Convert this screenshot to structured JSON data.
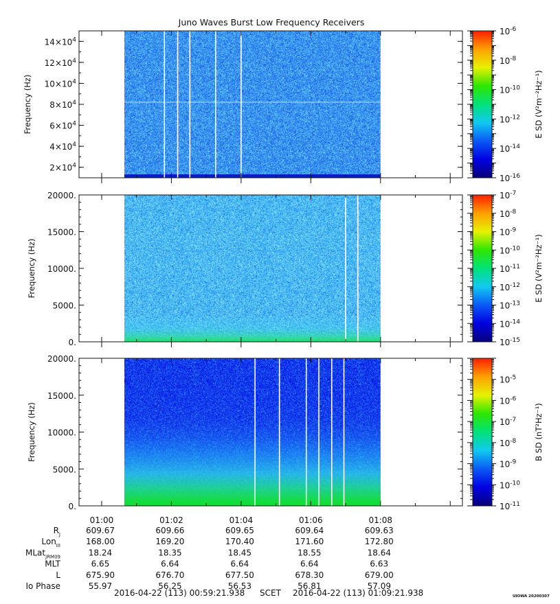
{
  "title": "Juno Waves Burst Low Frequency Receivers",
  "footer_left": "2016-04-22 (113) 00:59:21.938",
  "footer_mid": "SCET",
  "footer_right": "2016-04-22 (113) 01:09:21.938",
  "watermark": "UIOWA 20200307",
  "colors": {
    "colormap": [
      "#08007a",
      "#0000e0",
      "#0a5af5",
      "#12c8f0",
      "#00e27a",
      "#2ee600",
      "#e6f200",
      "#ffa000",
      "#ff1e00"
    ]
  },
  "ephemeris": {
    "labels": [
      {
        "main": "R",
        "sub": "J"
      },
      {
        "main": "Lon",
        "sub": "III"
      },
      {
        "main": "MLat",
        "sub": "JRM09"
      },
      {
        "main": "MLT",
        "sub": ""
      },
      {
        "main": "L",
        "sub": ""
      },
      {
        "main": "Io Phase",
        "sub": ""
      }
    ],
    "columns": [
      [
        "609.67",
        "168.00",
        "18.24",
        "6.65",
        "675.90",
        "55.97"
      ],
      [
        "609.66",
        "169.20",
        "18.35",
        "6.64",
        "676.70",
        "56.25"
      ],
      [
        "609.65",
        "170.40",
        "18.45",
        "6.64",
        "677.50",
        "56.53"
      ],
      [
        "609.64",
        "171.60",
        "18.55",
        "6.64",
        "678.30",
        "56.81"
      ],
      [
        "609.63",
        "172.80",
        "18.64",
        "6.63",
        "679.00",
        "57.09"
      ]
    ]
  },
  "chart_data": [
    {
      "type": "heatmap",
      "title": "Juno Waves Burst Low Frequency Receivers",
      "xlabel": "",
      "ylabel": "Frequency (Hz)",
      "x_ticks": [
        "01:00",
        "01:02",
        "01:04",
        "01:06",
        "01:08"
      ],
      "x_range_min": [
        -0.65,
        10.35
      ],
      "data_range_min": [
        0.65,
        8.0
      ],
      "ylim": [
        10000,
        150000
      ],
      "y_ticks": [
        {
          "value": 20000,
          "mant": "2×10",
          "exp": "4"
        },
        {
          "value": 40000,
          "mant": "4×10",
          "exp": "4"
        },
        {
          "value": 60000,
          "mant": "6×10",
          "exp": "4"
        },
        {
          "value": 80000,
          "mant": "8×10",
          "exp": "4"
        },
        {
          "value": 100000,
          "mant": "10×10",
          "exp": "4"
        },
        {
          "value": 120000,
          "mant": "12×10",
          "exp": "4"
        },
        {
          "value": 140000,
          "mant": "14×10",
          "exp": "4"
        }
      ],
      "colorbar": {
        "label": "E SD",
        "unit": "V²m⁻²Hz⁻¹",
        "log_range": [
          -16,
          -6
        ],
        "ticks": [
          {
            "base": "10",
            "exp": "-6"
          },
          {
            "base": "10",
            "exp": "-8"
          },
          {
            "base": "10",
            "exp": "-10"
          },
          {
            "base": "10",
            "exp": "-12"
          },
          {
            "base": "10",
            "exp": "-14"
          },
          {
            "base": "10",
            "exp": "-16"
          }
        ],
        "tick_values": [
          -6,
          -8,
          -10,
          -12,
          -14,
          -16
        ]
      },
      "gaps_min": [
        1.8,
        2.18,
        2.53,
        3.27,
        4.0
      ],
      "horizontal_line_hz": 82000,
      "low_band_hz": 0
    },
    {
      "type": "heatmap",
      "xlabel": "",
      "ylabel": "Frequency (Hz)",
      "x_ticks": [
        "01:00",
        "01:02",
        "01:04",
        "01:06",
        "01:08"
      ],
      "x_range_min": [
        -0.65,
        10.35
      ],
      "data_range_min": [
        0.65,
        8.0
      ],
      "ylim": [
        0,
        20000
      ],
      "y_ticks": [
        {
          "value": 0,
          "mant": "0.",
          "exp": ""
        },
        {
          "value": 5000,
          "mant": "5000.",
          "exp": ""
        },
        {
          "value": 10000,
          "mant": "10000.",
          "exp": ""
        },
        {
          "value": 15000,
          "mant": "15000.",
          "exp": ""
        },
        {
          "value": 20000,
          "mant": "20000.",
          "exp": ""
        }
      ],
      "colorbar": {
        "label": "E SD",
        "unit": "V²m⁻²Hz⁻¹",
        "log_range": [
          -15,
          -7
        ],
        "ticks": [
          {
            "base": "10",
            "exp": "-7"
          },
          {
            "base": "10",
            "exp": "-8"
          },
          {
            "base": "10",
            "exp": "-9"
          },
          {
            "base": "10",
            "exp": "-10"
          },
          {
            "base": "10",
            "exp": "-11"
          },
          {
            "base": "10",
            "exp": "-12"
          },
          {
            "base": "10",
            "exp": "-13"
          },
          {
            "base": "10",
            "exp": "-14"
          },
          {
            "base": "10",
            "exp": "-15"
          }
        ],
        "tick_values": [
          -7,
          -8,
          -9,
          -10,
          -11,
          -12,
          -13,
          -14,
          -15
        ]
      },
      "gaps_min": [
        7.0,
        7.35
      ],
      "low_band_hz": 1200
    },
    {
      "type": "heatmap",
      "xlabel": "",
      "ylabel": "Frequency (Hz)",
      "x_ticks": [
        "01:00",
        "01:02",
        "01:04",
        "01:06",
        "01:08"
      ],
      "x_range_min": [
        -0.65,
        10.35
      ],
      "data_range_min": [
        0.65,
        8.0
      ],
      "ylim": [
        0,
        20000
      ],
      "y_ticks": [
        {
          "value": 0,
          "mant": "0.",
          "exp": ""
        },
        {
          "value": 5000,
          "mant": "5000.",
          "exp": ""
        },
        {
          "value": 10000,
          "mant": "10000.",
          "exp": ""
        },
        {
          "value": 15000,
          "mant": "15000.",
          "exp": ""
        },
        {
          "value": 20000,
          "mant": "20000.",
          "exp": ""
        }
      ],
      "colorbar": {
        "label": "B SD",
        "unit": "nT²Hz⁻¹",
        "log_range": [
          -11,
          -4
        ],
        "ticks": [
          {
            "base": "10",
            "exp": "-5"
          },
          {
            "base": "10",
            "exp": "-6"
          },
          {
            "base": "10",
            "exp": "-7"
          },
          {
            "base": "10",
            "exp": "-8"
          },
          {
            "base": "10",
            "exp": "-9"
          },
          {
            "base": "10",
            "exp": "-10"
          },
          {
            "base": "10",
            "exp": "-11"
          }
        ],
        "tick_values": [
          -5,
          -6,
          -7,
          -8,
          -9,
          -10,
          -11
        ]
      },
      "gaps_min": [
        4.4,
        5.1,
        5.87,
        6.23,
        6.6,
        6.95
      ],
      "low_band_hz": 2500
    }
  ]
}
